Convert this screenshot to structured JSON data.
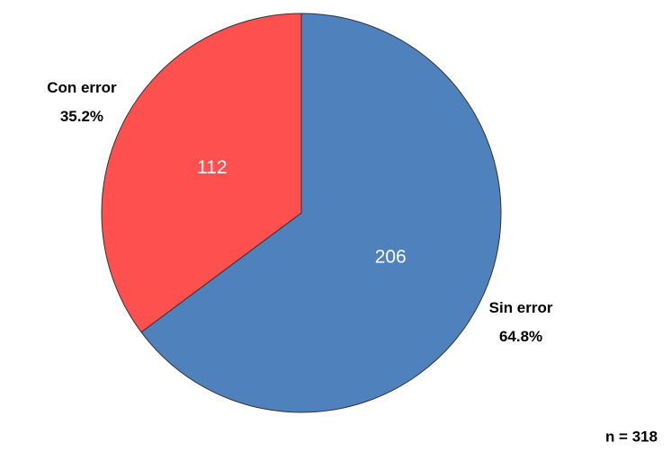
{
  "chart_data": {
    "type": "pie",
    "categories": [
      "Sin error",
      "Con error"
    ],
    "values": [
      206,
      112
    ],
    "percentages": [
      64.8,
      35.2
    ],
    "percentage_labels": [
      "64.8%",
      "35.2%"
    ],
    "colors": [
      "#4f81bd",
      "#ff5050"
    ],
    "annotation": "n = 318"
  }
}
